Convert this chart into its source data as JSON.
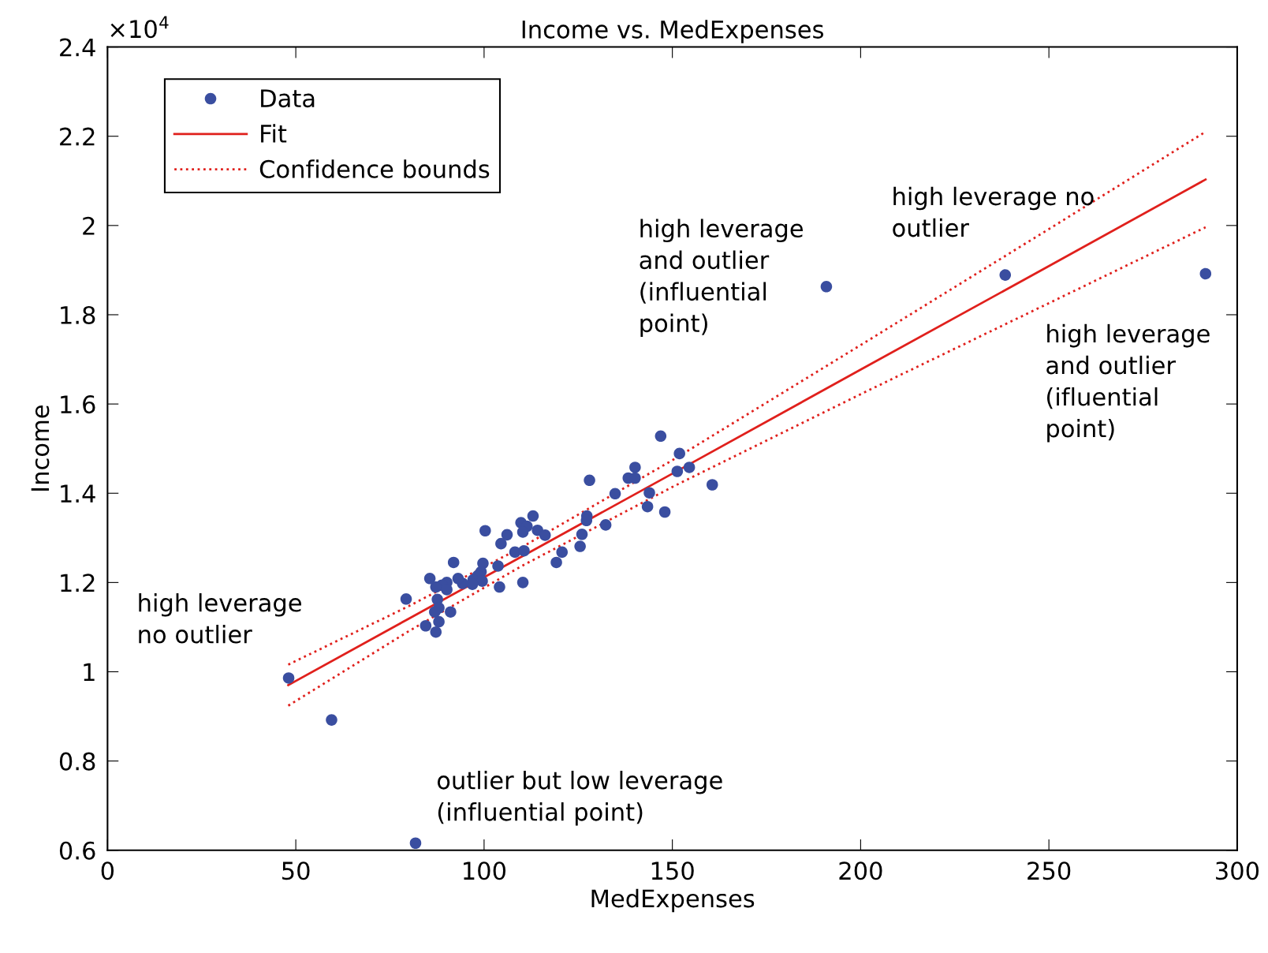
{
  "chart_data": {
    "type": "scatter",
    "title": "Income vs. MedExpenses",
    "xlabel": "MedExpenses",
    "ylabel": "Income",
    "xlim": [
      0,
      300
    ],
    "xticks": [
      0,
      50,
      100,
      150,
      200,
      250,
      300
    ],
    "ylim": [
      0.6,
      2.4
    ],
    "yticks": [
      0.6,
      0.8,
      1,
      1.2,
      1.4,
      1.6,
      1.8,
      2,
      2.2,
      2.4
    ],
    "grid": false,
    "legend": "top left",
    "annotations": [
      "×10$^{4}$",
      "high leverage\nno outlier",
      "outlier but low leverage\n(influential point)",
      "high leverage\nand outlier\n(influential\npoint)",
      "high leverage no\noutlier",
      "high leverage\nand outlier\n(ifluential\npoint)"
    ],
    "series": [
      {
        "name": "Data",
        "color": "#3a4ea0",
        "marker": "circle",
        "x": [
          48.1,
          59.5,
          81.8,
          190.9,
          238.4,
          291.6,
          160.6,
          146.9,
          151.9,
          140.1,
          154.5,
          151.3,
          138.3,
          140.1,
          128.0,
          134.8,
          143.9,
          143.4,
          148.0,
          113.0,
          109.8,
          111.4,
          127.3,
          127.2,
          100.3,
          110.3,
          114.2,
          116.2,
          106.1,
          132.3,
          126.0,
          104.5,
          125.5,
          120.7,
          108.2,
          110.6,
          119.2,
          91.9,
          103.7,
          99.7,
          99.2,
          98.3,
          97.1,
          99.5,
          96.9,
          94.3,
          93.1,
          110.3,
          104.1,
          85.6,
          90.1,
          88.8,
          87.2,
          90.1,
          79.3,
          87.6,
          88.0,
          86.9,
          91.1,
          88.0,
          84.5,
          87.2
        ],
        "values": [
          0.986,
          0.892,
          0.616,
          1.863,
          1.889,
          1.892,
          1.419,
          1.528,
          1.489,
          1.458,
          1.458,
          1.449,
          1.434,
          1.434,
          1.429,
          1.399,
          1.401,
          1.37,
          1.358,
          1.349,
          1.334,
          1.326,
          1.349,
          1.339,
          1.316,
          1.313,
          1.317,
          1.306,
          1.307,
          1.329,
          1.308,
          1.287,
          1.281,
          1.268,
          1.268,
          1.271,
          1.245,
          1.245,
          1.237,
          1.243,
          1.224,
          1.215,
          1.206,
          1.203,
          1.196,
          1.198,
          1.209,
          1.2,
          1.19,
          1.209,
          1.2,
          1.194,
          1.19,
          1.184,
          1.163,
          1.162,
          1.143,
          1.134,
          1.134,
          1.112,
          1.103,
          1.089
        ]
      },
      {
        "name": "Fit",
        "type": "line",
        "color": "#e0201c",
        "line_style": "solid",
        "marker": "none",
        "x": [
          48,
          80,
          110,
          150,
          200,
          250,
          291.6
        ],
        "values": [
          0.97,
          1.119,
          1.258,
          1.444,
          1.677,
          1.909,
          2.103
        ]
      },
      {
        "name": "Confidence bounds",
        "type": "line",
        "color": "#e0201c",
        "line_style": "dotted",
        "marker": "none",
        "x": [
          48,
          80,
          110,
          150,
          200,
          250,
          291.6
        ],
        "values": [
          1.016,
          1.147,
          1.279,
          1.474,
          1.732,
          1.992,
          2.21
        ]
      },
      {
        "type": "line",
        "color": "#e0201c",
        "line_style": "dotted",
        "marker": "none",
        "x": [
          48,
          80,
          110,
          150,
          200,
          250,
          291.6
        ],
        "values": [
          0.924,
          1.091,
          1.237,
          1.414,
          1.622,
          1.826,
          1.996
        ]
      }
    ]
  }
}
